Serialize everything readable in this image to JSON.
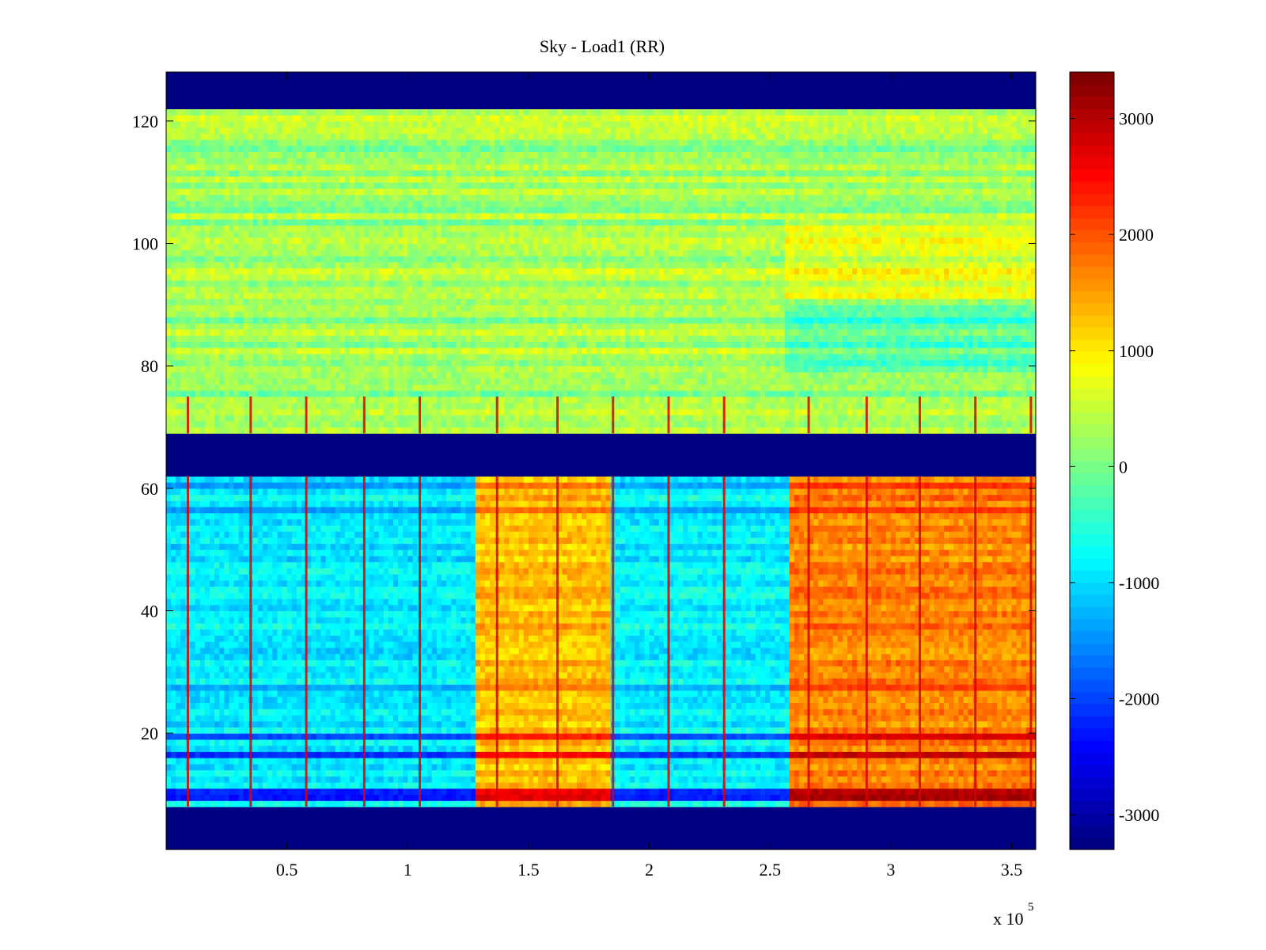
{
  "chart_data": {
    "type": "heatmap",
    "title": "Sky - Load1 (RR)",
    "xlabel": "",
    "ylabel": "",
    "x_multiplier_label": "x 10",
    "x_multiplier_exponent": "5",
    "xlim": [
      0,
      360000
    ],
    "ylim": [
      1,
      128
    ],
    "x_ticks": [
      50000,
      100000,
      150000,
      200000,
      250000,
      300000,
      350000
    ],
    "x_tick_labels": [
      "0.5",
      "1",
      "1.5",
      "2",
      "2.5",
      "3",
      "3.5"
    ],
    "y_ticks": [
      20,
      40,
      60,
      80,
      100,
      120
    ],
    "y_tick_labels": [
      "20",
      "40",
      "60",
      "80",
      "100",
      "120"
    ],
    "colormap": "jet",
    "color_range": [
      -3300,
      3400
    ],
    "colorbar_ticks": [
      3000,
      2000,
      1000,
      0,
      -1000,
      -2000,
      -3000
    ],
    "colorbar_tick_labels": [
      "3000",
      "2000",
      "1000",
      "0",
      "-1000",
      "-2000",
      "-3000"
    ],
    "grid": false,
    "masked_channel_bands": [
      [
        1,
        8
      ],
      [
        62,
        69
      ],
      [
        122,
        128
      ]
    ],
    "lower_band_segments": [
      {
        "x": [
          0,
          128000
        ],
        "mean": -900
      },
      {
        "x": [
          128000,
          185000
        ],
        "mean": 1300
      },
      {
        "x": [
          185000,
          258000
        ],
        "mean": -850
      },
      {
        "x": [
          258000,
          360000
        ],
        "mean": 1700
      }
    ],
    "upper_band_segments": [
      {
        "x": [
          0,
          128000
        ],
        "mean": 250
      },
      {
        "x": [
          128000,
          255000
        ],
        "mean": 300
      },
      {
        "x": [
          255000,
          360000
        ],
        "mean": 250
      }
    ],
    "vertical_spikes_x": [
      9000,
      35000,
      58000,
      82000,
      105000,
      137000,
      162000,
      185000,
      208000,
      231000,
      266000,
      290000,
      312000,
      335000,
      358000
    ]
  }
}
